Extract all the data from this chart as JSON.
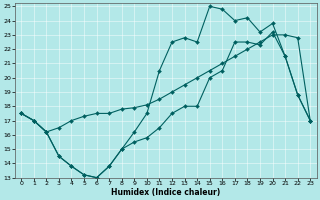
{
  "xlabel": "Humidex (Indice chaleur)",
  "bg_color": "#b3e8e8",
  "line_color": "#006060",
  "xlim": [
    -0.5,
    23.5
  ],
  "ylim": [
    13,
    25.2
  ],
  "xticks": [
    0,
    1,
    2,
    3,
    4,
    5,
    6,
    7,
    8,
    9,
    10,
    11,
    12,
    13,
    14,
    15,
    16,
    17,
    18,
    19,
    20,
    21,
    22,
    23
  ],
  "yticks": [
    13,
    14,
    15,
    16,
    17,
    18,
    19,
    20,
    21,
    22,
    23,
    24,
    25
  ],
  "line1_x": [
    0,
    1,
    2,
    3,
    4,
    5,
    6,
    7,
    8,
    9,
    10,
    11,
    12,
    13,
    14,
    15,
    16,
    17,
    18,
    19,
    20,
    21,
    22,
    23
  ],
  "line1_y": [
    17.5,
    17.0,
    16.2,
    16.5,
    17.0,
    17.3,
    17.5,
    17.5,
    17.8,
    17.9,
    18.1,
    18.5,
    19.0,
    19.5,
    20.0,
    20.5,
    21.0,
    21.5,
    22.0,
    22.5,
    23.0,
    23.0,
    22.8,
    17.0
  ],
  "line2_x": [
    0,
    1,
    2,
    3,
    4,
    5,
    6,
    7,
    8,
    9,
    10,
    11,
    12,
    13,
    14,
    15,
    16,
    17,
    18,
    19,
    20,
    21,
    22,
    23
  ],
  "line2_y": [
    17.5,
    17.0,
    16.2,
    14.5,
    13.8,
    13.2,
    13.0,
    13.8,
    15.0,
    15.5,
    15.8,
    16.5,
    17.5,
    18.0,
    18.0,
    20.0,
    20.5,
    22.5,
    22.5,
    22.3,
    23.2,
    21.5,
    18.8,
    17.0
  ],
  "line3_x": [
    0,
    1,
    2,
    3,
    4,
    5,
    6,
    7,
    8,
    9,
    10,
    11,
    12,
    13,
    14,
    15,
    16,
    17,
    18,
    19,
    20,
    21,
    22,
    23
  ],
  "line3_y": [
    17.5,
    17.0,
    16.2,
    14.5,
    13.8,
    13.2,
    13.0,
    13.8,
    15.0,
    16.2,
    17.5,
    20.5,
    22.5,
    22.8,
    22.5,
    25.0,
    24.8,
    24.0,
    24.2,
    23.2,
    23.8,
    21.5,
    18.8,
    17.0
  ]
}
